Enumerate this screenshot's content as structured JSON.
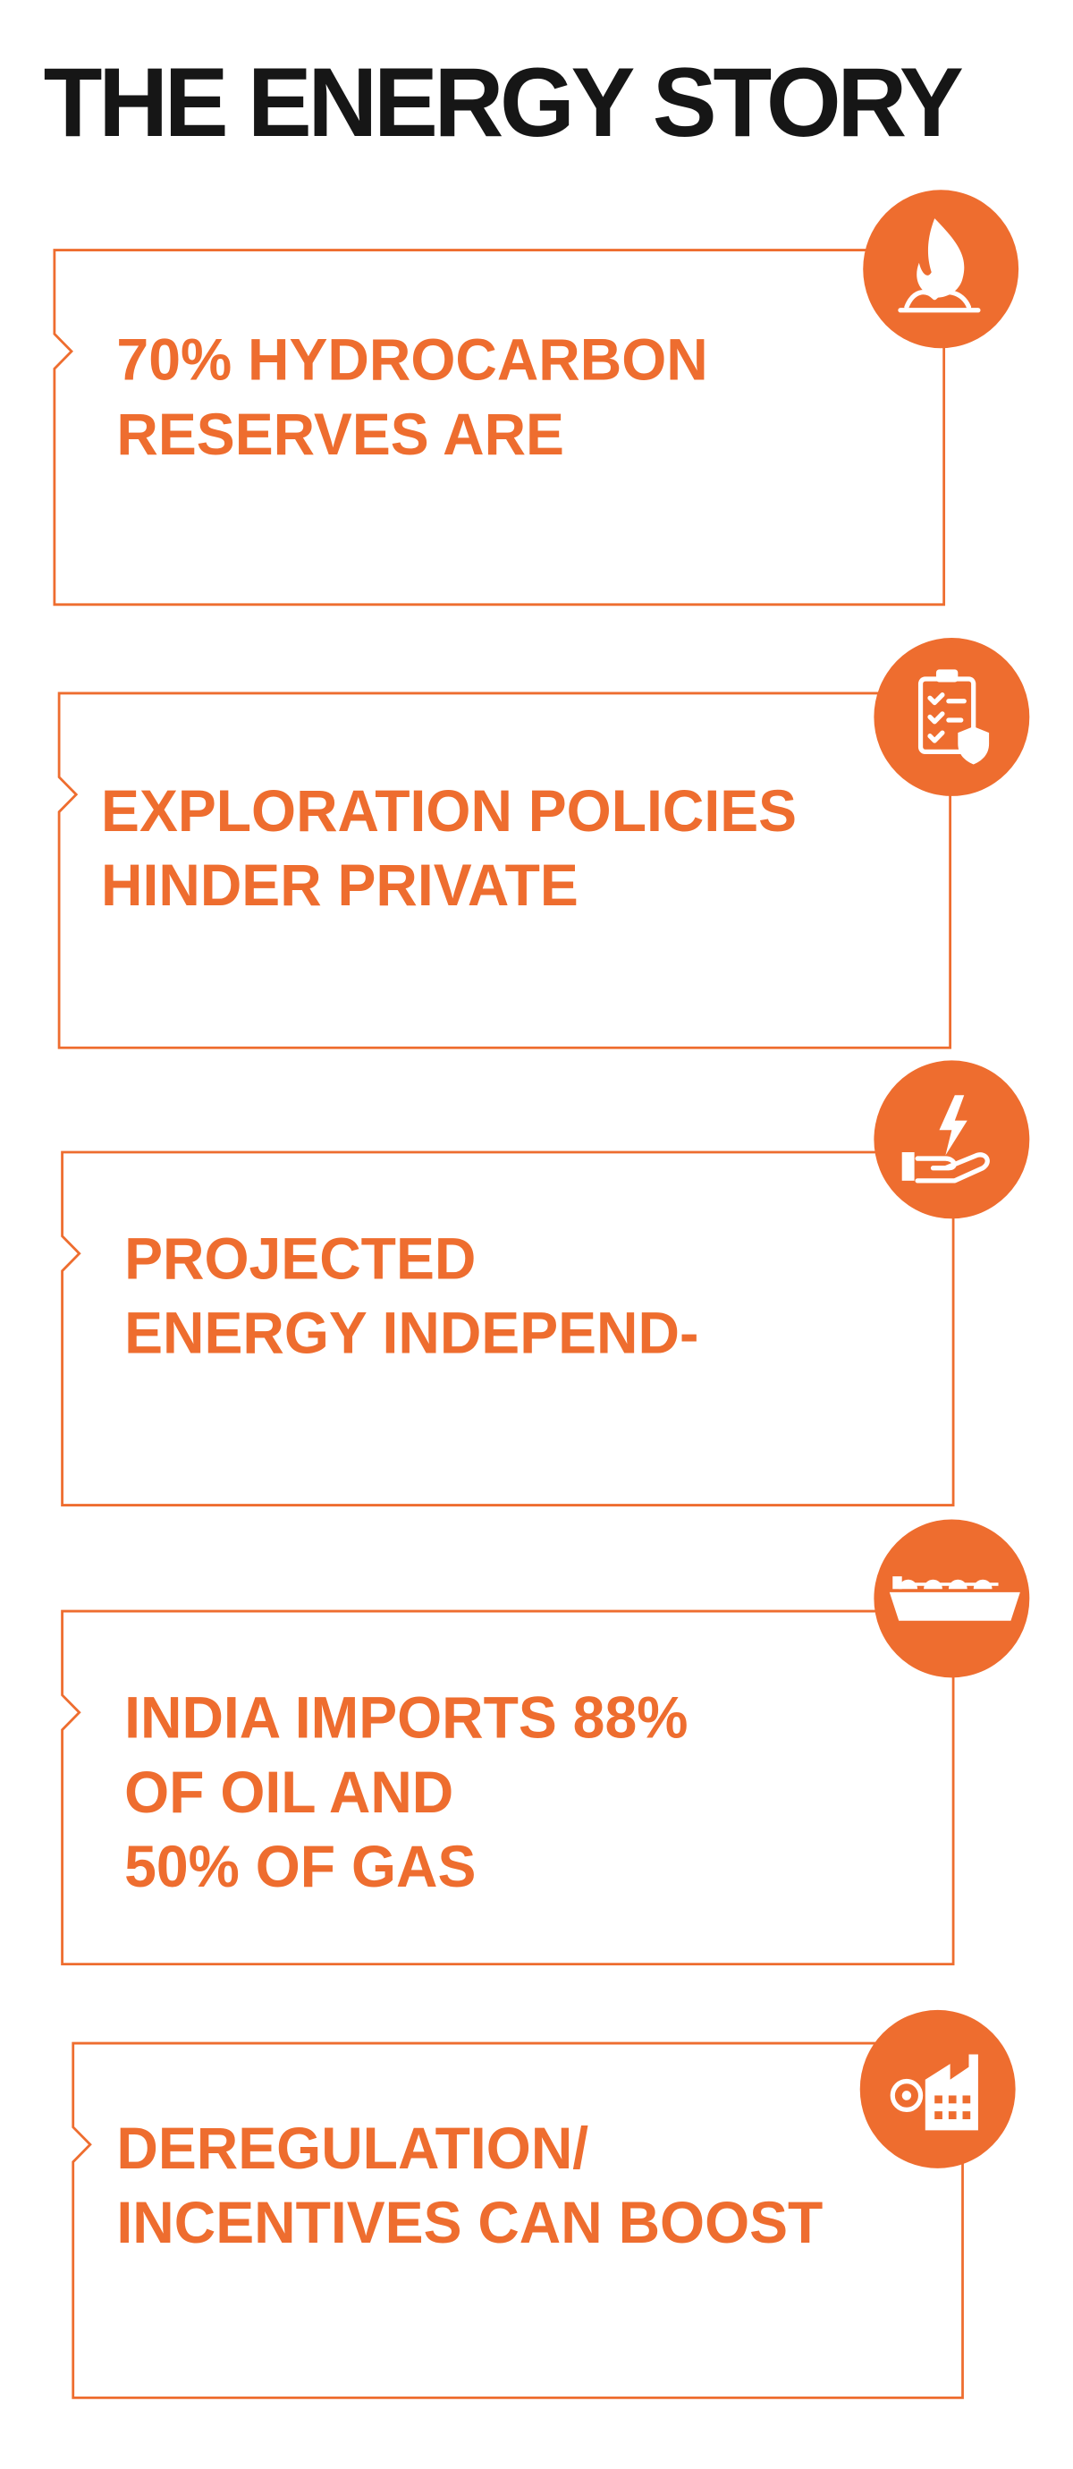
{
  "title": "THE ENERGY STORY",
  "cards": [
    {
      "lines": [
        "70% HYDROCARBON",
        "RESERVES ARE"
      ]
    },
    {
      "lines": [
        "EXPLORATION POLICIES",
        "HINDER PRIVATE"
      ]
    },
    {
      "lines": [
        "PROJECTED",
        "ENERGY INDEPEND-"
      ]
    },
    {
      "lines": [
        "INDIA IMPORTS 88%",
        "OF OIL AND",
        "50% OF GAS"
      ]
    },
    {
      "lines": [
        "DEREGULATION/",
        "INCENTIVES CAN BOOST"
      ]
    }
  ]
}
